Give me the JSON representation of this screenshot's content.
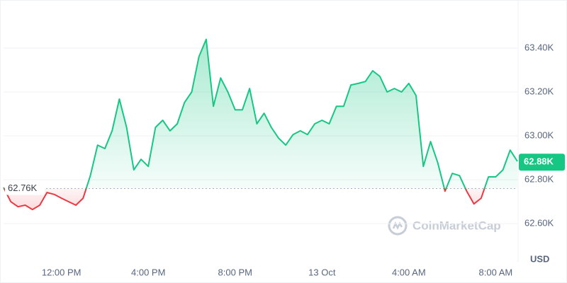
{
  "chart_data": {
    "type": "line",
    "categories": [
      null,
      null,
      null,
      null,
      null,
      null,
      null,
      null,
      "12:00 PM",
      null,
      null,
      null,
      null,
      null,
      null,
      null,
      null,
      null,
      null,
      null,
      "4:00 PM",
      null,
      null,
      null,
      null,
      null,
      null,
      null,
      null,
      null,
      null,
      null,
      "8:00 PM",
      null,
      null,
      null,
      null,
      null,
      null,
      null,
      null,
      null,
      null,
      null,
      "13 Oct",
      null,
      null,
      null,
      null,
      null,
      null,
      null,
      null,
      null,
      null,
      null,
      "4:00 AM",
      null,
      null,
      null,
      null,
      null,
      null,
      null,
      null,
      null,
      null,
      null,
      "8:00 AM",
      null,
      null,
      null
    ],
    "values": [
      62765,
      62700,
      62677,
      62684,
      62664,
      62684,
      62742,
      62733,
      62716,
      62700,
      62684,
      62716,
      62819,
      62958,
      62942,
      63023,
      63168,
      63039,
      62845,
      62893,
      62861,
      63039,
      63071,
      63023,
      63055,
      63152,
      63200,
      63361,
      63440,
      63135,
      63264,
      63200,
      63119,
      63119,
      63216,
      63055,
      63103,
      63039,
      62990,
      62958,
      63006,
      63023,
      63006,
      63055,
      63071,
      63055,
      63135,
      63135,
      63232,
      63239,
      63248,
      63297,
      63271,
      63200,
      63216,
      63200,
      63239,
      63184,
      62861,
      62974,
      62877,
      62748,
      62829,
      62819,
      62748,
      62690,
      62716,
      62813,
      62813,
      62845,
      62935,
      62884
    ],
    "up_color": "#16c784",
    "down_color": "#ea3943",
    "ylim": [
      62510,
      63600
    ],
    "yticks": [
      {
        "value": 62600,
        "label": "62.60K"
      },
      {
        "value": 62800,
        "label": "62.80K"
      },
      {
        "value": 63000,
        "label": "63.00K"
      },
      {
        "value": 63200,
        "label": "63.20K"
      },
      {
        "value": 63400,
        "label": "63.40K"
      }
    ],
    "grid": true,
    "baseline": {
      "value": 62760,
      "label": "62.76K"
    },
    "last_price": {
      "value": 62880,
      "label": "62.88K"
    },
    "axis_unit": "USD",
    "watermark": "CoinMarketCap"
  }
}
